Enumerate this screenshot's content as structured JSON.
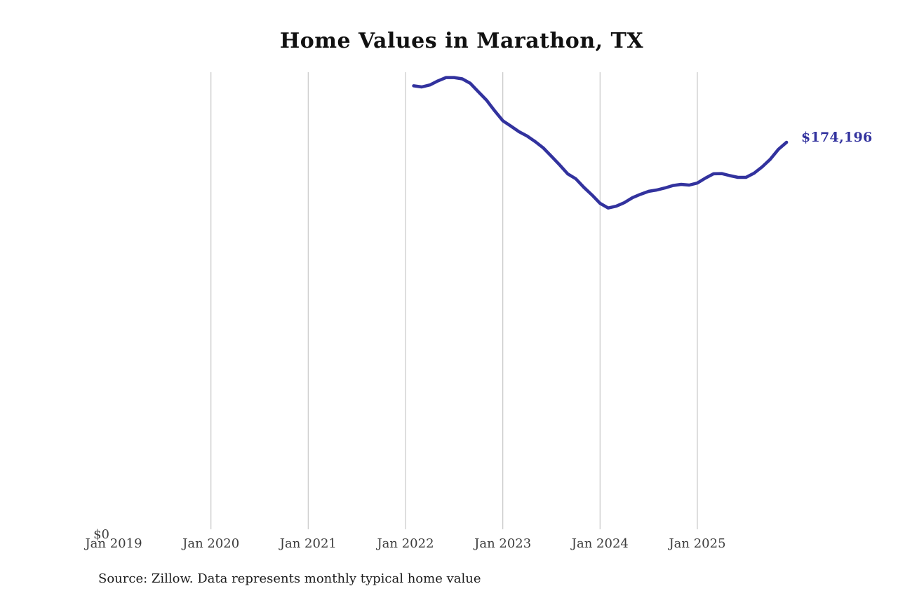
{
  "title": "Home Values in Marathon, TX",
  "source_note": "Source: Zillow. Data represents monthly typical home value",
  "labels": {
    "y_zero": "$0",
    "latest_value": "$174,196"
  },
  "colors": {
    "line": "#32329e",
    "grid": "#cccccc",
    "axis_label": "#3d3d3d",
    "title_text": "#111111",
    "source_text": "#1b1b1b",
    "background": "#ffffff"
  },
  "chart_data": {
    "type": "line",
    "title": "Home Values in Marathon, TX",
    "xlabel": "",
    "ylabel": "",
    "unit": "USD",
    "grid": "vertical-only",
    "legend": "none",
    "x_axis_start": "Jan 2019",
    "x_tick_labels": [
      "Jan 2019",
      "Jan 2020",
      "Jan 2021",
      "Jan 2022",
      "Jan 2023",
      "Jan 2024",
      "Jan 2025"
    ],
    "y_tick_labels": [
      "$0"
    ],
    "ylim": [
      0,
      205400
    ],
    "last_value": 174196,
    "last_value_label": "$174,196",
    "series": [
      {
        "name": "Monthly typical home value",
        "x": [
          "2022-02",
          "2022-03",
          "2022-04",
          "2022-05",
          "2022-06",
          "2022-07",
          "2022-08",
          "2022-09",
          "2022-10",
          "2022-11",
          "2022-12",
          "2023-01",
          "2023-02",
          "2023-03",
          "2023-04",
          "2023-05",
          "2023-06",
          "2023-07",
          "2023-08",
          "2023-09",
          "2023-10",
          "2023-11",
          "2023-12",
          "2024-01",
          "2024-02",
          "2024-03",
          "2024-04",
          "2024-05",
          "2024-06",
          "2024-07",
          "2024-08",
          "2024-09",
          "2024-10",
          "2024-11",
          "2024-12",
          "2025-01",
          "2025-02",
          "2025-03",
          "2025-04",
          "2025-05",
          "2025-06",
          "2025-07",
          "2025-08",
          "2025-09",
          "2025-10",
          "2025-11",
          "2025-12"
        ],
        "values": [
          199300,
          198800,
          199700,
          201500,
          203000,
          203000,
          202400,
          200400,
          196600,
          192900,
          188200,
          183800,
          181400,
          178900,
          177000,
          174500,
          171700,
          168000,
          164200,
          160200,
          158000,
          154200,
          150800,
          147100,
          145000,
          145800,
          147400,
          149600,
          151100,
          152400,
          153000,
          153900,
          155000,
          155500,
          155200,
          156100,
          158300,
          160200,
          160300,
          159400,
          158600,
          158600,
          160500,
          163300,
          166700,
          171100,
          174196
        ]
      }
    ]
  }
}
